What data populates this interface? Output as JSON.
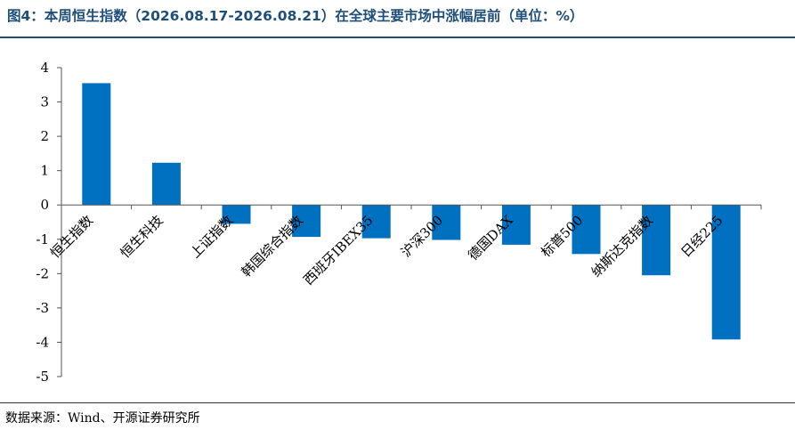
{
  "header": {
    "title": "图4：本周恒生指数（2026.08.17-2026.08.21）在全球主要市场中涨幅居前（单位：%）"
  },
  "footer": {
    "source": "数据来源：Wind、开源证券研究所"
  },
  "chart_data": {
    "type": "bar",
    "title": "图4：本周恒生指数（2026.08.17-2026.08.21）在全球主要市场中涨幅居前（单位：%）",
    "categories": [
      "恒生指数",
      "恒生科技",
      "上证指数",
      "韩国综合指数",
      "西班牙IBEX35",
      "沪深300",
      "德国DAX",
      "标普500",
      "纳斯达克指数",
      "日经225"
    ],
    "values": [
      3.55,
      1.23,
      -0.55,
      -0.93,
      -0.97,
      -1.02,
      -1.16,
      -1.43,
      -2.05,
      -3.92
    ],
    "ylim": [
      -5,
      4
    ],
    "yticks": [
      4,
      3,
      2,
      1,
      0,
      -1,
      -2,
      -3,
      -4,
      -5
    ],
    "xlabel": "",
    "ylabel": "",
    "grid": false,
    "legend": false,
    "bar_color": "#0070c0"
  }
}
